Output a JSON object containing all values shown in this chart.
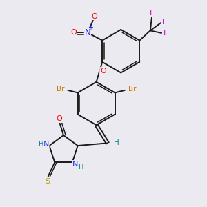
{
  "bg": "#eaeaf0",
  "bc": "#1a1a1a",
  "lw": 1.4,
  "fs": 8.0,
  "colors": {
    "N": "#1e1eff",
    "O": "#ff0000",
    "S": "#b8a000",
    "Br": "#cc7700",
    "F": "#cc00cc",
    "H": "#008888"
  },
  "xlim": [
    0,
    10
  ],
  "ylim": [
    0,
    10
  ]
}
